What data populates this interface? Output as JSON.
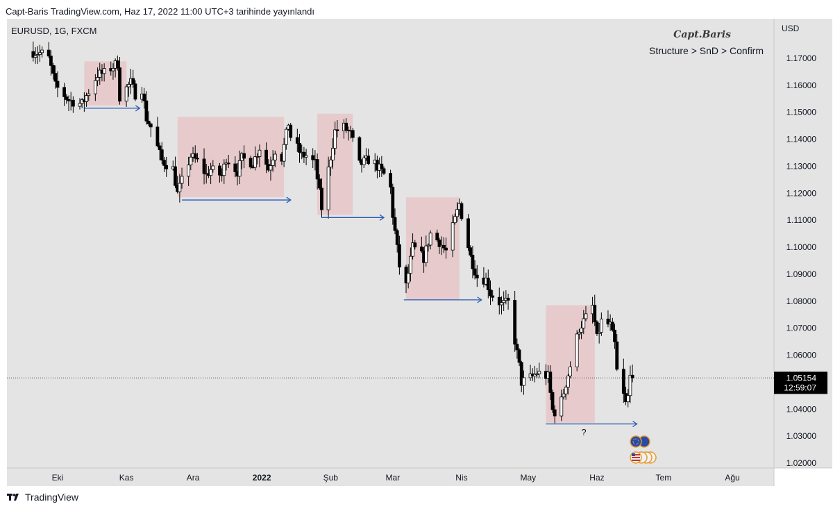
{
  "header": {
    "text": "Capt-Baris TradingView.com, Haz 17, 2022 11:00 UTC+3 tarihinde yayınlandı"
  },
  "chart": {
    "symbol": "EURUSD, 1G, FXCM",
    "watermark": "Capt.Baris",
    "subtitle": "Structure > SnD > Confirm",
    "currency": "USD",
    "question_mark": "?",
    "current_price": "1.05154",
    "countdown": "12:59:07"
  },
  "footer": {
    "brand": "TradingView"
  },
  "colors": {
    "background": "#e4e4e4",
    "zone_fill": "#e8c7c8",
    "arrow": "#2a5bb4",
    "candle_up_body": "#ffffff",
    "candle_down_body": "#000000",
    "price_label_bg": "#000000"
  },
  "icons": [
    "eu-flag-icon",
    "us-flag-icon"
  ],
  "chart_data": {
    "type": "candlestick",
    "title": "EURUSD, 1G, FXCM",
    "ylabel": "USD",
    "ylim": [
      1.0175,
      1.1925
    ],
    "y_ticks": [
      "1.17000",
      "1.16000",
      "1.15000",
      "1.14000",
      "1.13000",
      "1.12000",
      "1.11000",
      "1.10000",
      "1.09000",
      "1.08000",
      "1.07000",
      "1.06000",
      "1.05000",
      "1.04000",
      "1.03000",
      "1.02000"
    ],
    "x_ticks": [
      {
        "label": "Eki",
        "date": "2021-10-01"
      },
      {
        "label": "Kas",
        "date": "2021-11-01"
      },
      {
        "label": "Ara",
        "date": "2021-12-01"
      },
      {
        "label": "2022",
        "date": "2022-01-01",
        "bold": true
      },
      {
        "label": "Şub",
        "date": "2022-02-01"
      },
      {
        "label": "Mar",
        "date": "2022-03-01"
      },
      {
        "label": "Nis",
        "date": "2022-04-01"
      },
      {
        "label": "May",
        "date": "2022-05-01"
      },
      {
        "label": "Haz",
        "date": "2022-06-01"
      },
      {
        "label": "Tem",
        "date": "2022-07-01"
      },
      {
        "label": "Ağu",
        "date": "2022-08-01"
      }
    ],
    "last_price": 1.05154,
    "zones": [
      {
        "start": "2021-10-13",
        "end": "2021-11-01",
        "top": 1.1689,
        "bottom": 1.1525
      },
      {
        "start": "2021-11-24",
        "end": "2022-01-11",
        "top": 1.1483,
        "bottom": 1.1185
      },
      {
        "start": "2022-01-26",
        "end": "2022-02-11",
        "top": 1.1495,
        "bottom": 1.112
      },
      {
        "start": "2022-03-07",
        "end": "2022-03-31",
        "top": 1.1185,
        "bottom": 1.0805
      },
      {
        "start": "2022-05-09",
        "end": "2022-05-31",
        "top": 1.0785,
        "bottom": 1.035
      }
    ],
    "arrows": [
      {
        "start": "2021-10-13",
        "end": "2021-11-07",
        "price": 1.1515
      },
      {
        "start": "2021-11-26",
        "end": "2022-01-14",
        "price": 1.1175
      },
      {
        "start": "2022-01-28",
        "end": "2022-02-25",
        "price": 1.111
      },
      {
        "start": "2022-03-06",
        "end": "2022-04-10",
        "price": 1.0805
      },
      {
        "start": "2022-05-09",
        "end": "2022-06-19",
        "price": 1.0345
      }
    ],
    "anchors": [
      [
        "2021-09-19",
        1.1725
      ],
      [
        "2021-09-24",
        1.1718
      ],
      [
        "2021-09-27",
        1.17
      ],
      [
        "2021-09-30",
        1.1598
      ],
      [
        "2021-10-06",
        1.1545
      ],
      [
        "2021-10-12",
        1.153
      ],
      [
        "2021-10-19",
        1.164
      ],
      [
        "2021-10-22",
        1.1645
      ],
      [
        "2021-10-28",
        1.1682
      ],
      [
        "2021-10-29",
        1.1558
      ],
      [
        "2021-11-03",
        1.161
      ],
      [
        "2021-11-05",
        1.1568
      ],
      [
        "2021-11-08",
        1.1588
      ],
      [
        "2021-11-10",
        1.1478
      ],
      [
        "2021-11-12",
        1.1446
      ],
      [
        "2021-11-17",
        1.132
      ],
      [
        "2021-11-22",
        1.129
      ],
      [
        "2021-11-24",
        1.1198
      ],
      [
        "2021-11-30",
        1.1338
      ],
      [
        "2021-12-03",
        1.1318
      ],
      [
        "2021-12-07",
        1.1268
      ],
      [
        "2021-12-09",
        1.1288
      ],
      [
        "2021-12-14",
        1.1265
      ],
      [
        "2021-12-16",
        1.1331
      ],
      [
        "2021-12-21",
        1.128
      ],
      [
        "2021-12-23",
        1.1329
      ],
      [
        "2021-12-28",
        1.1312
      ],
      [
        "2021-12-31",
        1.137
      ],
      [
        "2022-01-04",
        1.129
      ],
      [
        "2022-01-07",
        1.136
      ],
      [
        "2022-01-10",
        1.1332
      ],
      [
        "2022-01-13",
        1.146
      ],
      [
        "2022-01-14",
        1.141
      ],
      [
        "2022-01-19",
        1.134
      ],
      [
        "2022-01-21",
        1.134
      ],
      [
        "2022-01-25",
        1.131
      ],
      [
        "2022-01-28",
        1.1145
      ],
      [
        "2022-02-03",
        1.143
      ],
      [
        "2022-02-07",
        1.1445
      ],
      [
        "2022-02-10",
        1.142
      ],
      [
        "2022-02-14",
        1.1305
      ],
      [
        "2022-02-18",
        1.1325
      ],
      [
        "2022-02-21",
        1.131
      ],
      [
        "2022-02-25",
        1.127
      ],
      [
        "2022-02-28",
        1.1218
      ],
      [
        "2022-03-01",
        1.112
      ],
      [
        "2022-03-04",
        1.093
      ],
      [
        "2022-03-07",
        1.0855
      ],
      [
        "2022-03-10",
        1.1
      ],
      [
        "2022-03-15",
        1.096
      ],
      [
        "2022-03-18",
        1.105
      ],
      [
        "2022-03-22",
        1.102
      ],
      [
        "2022-03-25",
        1.0985
      ],
      [
        "2022-03-31",
        1.116
      ],
      [
        "2022-04-05",
        1.0965
      ],
      [
        "2022-04-08",
        1.089
      ],
      [
        "2022-04-12",
        1.088
      ],
      [
        "2022-04-14",
        1.083
      ],
      [
        "2022-04-19",
        1.0788
      ],
      [
        "2022-04-22",
        1.0795
      ],
      [
        "2022-04-27",
        1.056
      ],
      [
        "2022-04-28",
        1.05
      ],
      [
        "2022-05-03",
        1.052
      ],
      [
        "2022-05-05",
        1.0535
      ],
      [
        "2022-05-10",
        1.052
      ],
      [
        "2022-05-12",
        1.0395
      ],
      [
        "2022-05-13",
        1.039
      ],
      [
        "2022-05-16",
        1.043
      ],
      [
        "2022-05-20",
        1.056
      ],
      [
        "2022-05-24",
        1.07
      ],
      [
        "2022-05-26",
        1.0725
      ],
      [
        "2022-05-30",
        1.078
      ],
      [
        "2022-06-01",
        1.066
      ],
      [
        "2022-06-03",
        1.0725
      ],
      [
        "2022-06-07",
        1.071
      ],
      [
        "2022-06-09",
        1.064
      ],
      [
        "2022-06-10",
        1.054
      ],
      [
        "2022-06-14",
        1.042
      ],
      [
        "2022-06-15",
        1.0445
      ],
      [
        "2022-06-16",
        1.0545
      ],
      [
        "2022-06-17",
        1.05154
      ]
    ]
  }
}
